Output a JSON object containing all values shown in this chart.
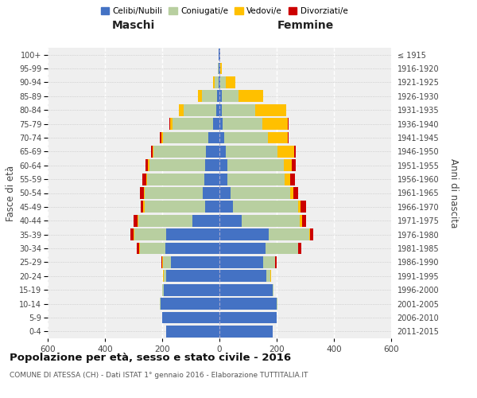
{
  "age_groups": [
    "0-4",
    "5-9",
    "10-14",
    "15-19",
    "20-24",
    "25-29",
    "30-34",
    "35-39",
    "40-44",
    "45-49",
    "50-54",
    "55-59",
    "60-64",
    "65-69",
    "70-74",
    "75-79",
    "80-84",
    "85-89",
    "90-94",
    "95-99",
    "100+"
  ],
  "birth_years": [
    "2011-2015",
    "2006-2010",
    "2001-2005",
    "1996-2000",
    "1991-1995",
    "1986-1990",
    "1981-1985",
    "1976-1980",
    "1971-1975",
    "1966-1970",
    "1961-1965",
    "1956-1960",
    "1951-1955",
    "1946-1950",
    "1941-1945",
    "1936-1940",
    "1931-1935",
    "1926-1930",
    "1921-1925",
    "1916-1920",
    "≤ 1915"
  ],
  "male": {
    "celibi": [
      185,
      200,
      205,
      195,
      185,
      170,
      190,
      185,
      95,
      50,
      58,
      52,
      50,
      48,
      38,
      22,
      12,
      8,
      4,
      2,
      2
    ],
    "coniugati": [
      0,
      1,
      2,
      4,
      10,
      28,
      88,
      112,
      188,
      212,
      202,
      200,
      195,
      182,
      158,
      142,
      112,
      52,
      14,
      3,
      1
    ],
    "vedovi": [
      0,
      0,
      0,
      0,
      1,
      1,
      2,
      4,
      4,
      4,
      4,
      4,
      4,
      4,
      8,
      8,
      18,
      14,
      4,
      1,
      0
    ],
    "divorziati": [
      0,
      0,
      0,
      0,
      1,
      4,
      10,
      10,
      14,
      10,
      14,
      14,
      10,
      5,
      4,
      4,
      0,
      0,
      0,
      0,
      0
    ]
  },
  "female": {
    "nubili": [
      185,
      200,
      200,
      185,
      165,
      152,
      162,
      172,
      78,
      48,
      38,
      28,
      28,
      22,
      18,
      12,
      8,
      8,
      4,
      2,
      2
    ],
    "coniugate": [
      0,
      1,
      2,
      4,
      14,
      42,
      112,
      142,
      202,
      228,
      208,
      200,
      198,
      182,
      152,
      138,
      118,
      58,
      18,
      2,
      1
    ],
    "vedove": [
      0,
      0,
      0,
      0,
      1,
      1,
      2,
      4,
      8,
      8,
      12,
      18,
      28,
      58,
      68,
      88,
      108,
      88,
      34,
      4,
      1
    ],
    "divorziate": [
      0,
      0,
      0,
      0,
      1,
      4,
      10,
      10,
      14,
      18,
      18,
      18,
      14,
      4,
      4,
      4,
      0,
      0,
      0,
      0,
      0
    ]
  },
  "colors": {
    "celibi": "#4472c4",
    "coniugati": "#b8cfa0",
    "vedovi": "#ffc000",
    "divorziati": "#cc0000"
  },
  "title": "Popolazione per età, sesso e stato civile - 2016",
  "subtitle": "COMUNE DI ATESSA (CH) - Dati ISTAT 1° gennaio 2016 - Elaborazione TUTTITALIA.IT",
  "xlabel_left": "Maschi",
  "xlabel_right": "Femmine",
  "ylabel_left": "Fasce di età",
  "ylabel_right": "Anni di nascita",
  "xlim": 600,
  "bg_color": "#efefef",
  "legend_labels": [
    "Celibi/Nubili",
    "Coniugati/e",
    "Vedovi/e",
    "Divorziati/e"
  ]
}
